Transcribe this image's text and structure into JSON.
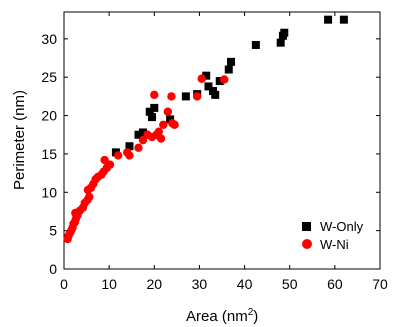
{
  "chart_data": {
    "type": "scatter",
    "xlabel": "Area (nm",
    "xlabel_sup": "2",
    "xlabel_suffix": ")",
    "ylabel": "Perimeter (nm)",
    "xlim": [
      0,
      70
    ],
    "ylim": [
      0,
      33.5
    ],
    "x_ticks": [
      0,
      10,
      20,
      30,
      40,
      50,
      60,
      70
    ],
    "y_ticks": [
      0,
      5,
      10,
      15,
      20,
      25,
      30
    ],
    "legend_position": "lower-right",
    "series": [
      {
        "name": "W-Only",
        "marker": "square",
        "color": "#000000",
        "points": [
          [
            11.5,
            15.2
          ],
          [
            14.5,
            16.0
          ],
          [
            16.5,
            17.5
          ],
          [
            17.5,
            17.8
          ],
          [
            19.0,
            20.5
          ],
          [
            19.5,
            19.8
          ],
          [
            20.0,
            21.0
          ],
          [
            23.5,
            19.5
          ],
          [
            27.0,
            22.5
          ],
          [
            29.5,
            22.8
          ],
          [
            31.5,
            25.2
          ],
          [
            32.0,
            23.8
          ],
          [
            33.0,
            23.2
          ],
          [
            33.5,
            22.7
          ],
          [
            34.5,
            24.5
          ],
          [
            36.5,
            26.0
          ],
          [
            37.0,
            27.0
          ],
          [
            42.5,
            29.2
          ],
          [
            48.0,
            29.5
          ],
          [
            48.5,
            30.4
          ],
          [
            48.8,
            30.8
          ],
          [
            58.5,
            32.5
          ],
          [
            62.0,
            32.5
          ]
        ]
      },
      {
        "name": "W-Ni",
        "marker": "circle",
        "color": "#ff0000",
        "points": [
          [
            0.8,
            3.9
          ],
          [
            1.0,
            4.3
          ],
          [
            1.3,
            4.7
          ],
          [
            1.6,
            5.0
          ],
          [
            1.9,
            5.4
          ],
          [
            2.1,
            5.9
          ],
          [
            2.4,
            6.1
          ],
          [
            2.6,
            6.5
          ],
          [
            2.5,
            7.3
          ],
          [
            3.0,
            7.0
          ],
          [
            3.5,
            7.6
          ],
          [
            4.2,
            8.0
          ],
          [
            4.6,
            8.6
          ],
          [
            5.2,
            9.0
          ],
          [
            5.6,
            9.4
          ],
          [
            5.3,
            10.3
          ],
          [
            6.0,
            10.6
          ],
          [
            6.5,
            11.1
          ],
          [
            7.0,
            11.7
          ],
          [
            7.5,
            12.0
          ],
          [
            8.3,
            12.3
          ],
          [
            8.8,
            12.7
          ],
          [
            9.5,
            13.2
          ],
          [
            9.0,
            14.2
          ],
          [
            10.2,
            13.6
          ],
          [
            12.0,
            14.8
          ],
          [
            14.0,
            15.2
          ],
          [
            14.5,
            14.8
          ],
          [
            16.5,
            15.8
          ],
          [
            17.5,
            16.8
          ],
          [
            18.5,
            17.5
          ],
          [
            19.5,
            17.2
          ],
          [
            20.5,
            17.5
          ],
          [
            21.0,
            17.9
          ],
          [
            22.0,
            18.8
          ],
          [
            23.0,
            20.5
          ],
          [
            24.0,
            19.0
          ],
          [
            24.5,
            18.8
          ],
          [
            21.5,
            17.0
          ],
          [
            20.0,
            22.7
          ],
          [
            23.8,
            22.5
          ],
          [
            29.5,
            22.5
          ],
          [
            30.5,
            24.8
          ],
          [
            35.5,
            24.7
          ]
        ]
      }
    ]
  }
}
